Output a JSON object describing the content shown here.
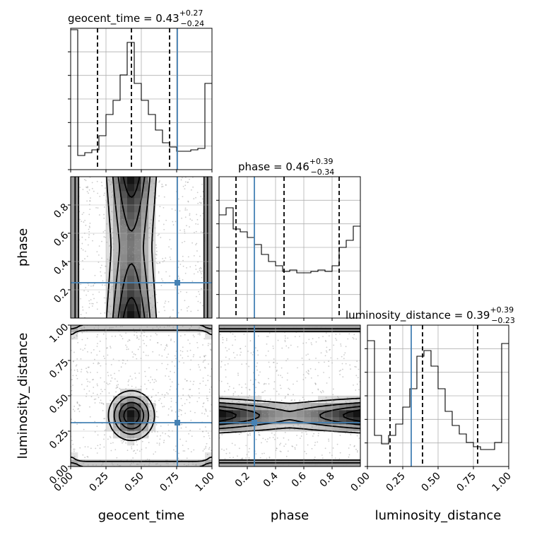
{
  "chart_data": {
    "type": "corner",
    "parameters": [
      "geocent_time",
      "phase",
      "luminosity_distance"
    ],
    "panel_titles": [
      {
        "param": "geocent_time",
        "name": "geocent_time",
        "median": "0.43",
        "plus": "+0.27",
        "minus": "−0.24"
      },
      {
        "param": "phase",
        "name": "phase",
        "median": "0.46",
        "plus": "+0.39",
        "minus": "−0.34"
      },
      {
        "param": "luminosity_distance",
        "name": "luminosity_distance",
        "median": "0.39",
        "plus": "+0.39",
        "minus": "−0.23"
      }
    ],
    "axis_labels": {
      "geocent_time": "geocent_time",
      "phase": "phase",
      "luminosity_distance": "luminosity_distance"
    },
    "ranges": {
      "geocent_time": [
        0.0,
        1.0
      ],
      "phase": [
        0.0,
        1.0
      ],
      "luminosity_distance": [
        0.0,
        1.0
      ]
    },
    "ticks": {
      "geocent_time": [
        "0.00",
        "0.25",
        "0.50",
        "0.75",
        "1.00"
      ],
      "phase": [
        "0.2",
        "0.4",
        "0.6",
        "0.8"
      ],
      "luminosity_distance": [
        "0.00",
        "0.25",
        "0.50",
        "0.75",
        "1.00"
      ]
    },
    "truths": {
      "geocent_time": 0.755,
      "phase": 0.25,
      "luminosity_distance": 0.31
    },
    "quantiles": {
      "geocent_time": [
        0.19,
        0.43,
        0.7
      ],
      "phase": [
        0.12,
        0.46,
        0.85
      ],
      "luminosity_distance": [
        0.16,
        0.39,
        0.78
      ]
    },
    "histograms": {
      "geocent_time": {
        "bins": 20,
        "counts": [
          0.99,
          0.1,
          0.12,
          0.14,
          0.24,
          0.39,
          0.49,
          0.67,
          0.9,
          0.61,
          0.49,
          0.39,
          0.28,
          0.19,
          0.16,
          0.13,
          0.13,
          0.14,
          0.15,
          0.61
        ]
      },
      "phase": {
        "bins": 20,
        "counts": [
          0.73,
          0.78,
          0.63,
          0.61,
          0.57,
          0.52,
          0.45,
          0.4,
          0.37,
          0.33,
          0.34,
          0.32,
          0.32,
          0.33,
          0.34,
          0.33,
          0.37,
          0.5,
          0.55,
          0.65
        ]
      },
      "luminosity_distance": {
        "bins": 20,
        "counts": [
          0.89,
          0.22,
          0.16,
          0.22,
          0.3,
          0.42,
          0.55,
          0.78,
          0.82,
          0.71,
          0.55,
          0.39,
          0.29,
          0.23,
          0.17,
          0.14,
          0.12,
          0.12,
          0.17,
          0.87
        ]
      }
    },
    "contour_panels": [
      {
        "x": "geocent_time",
        "y": "phase"
      },
      {
        "x": "geocent_time",
        "y": "luminosity_distance"
      },
      {
        "x": "phase",
        "y": "luminosity_distance"
      }
    ]
  }
}
